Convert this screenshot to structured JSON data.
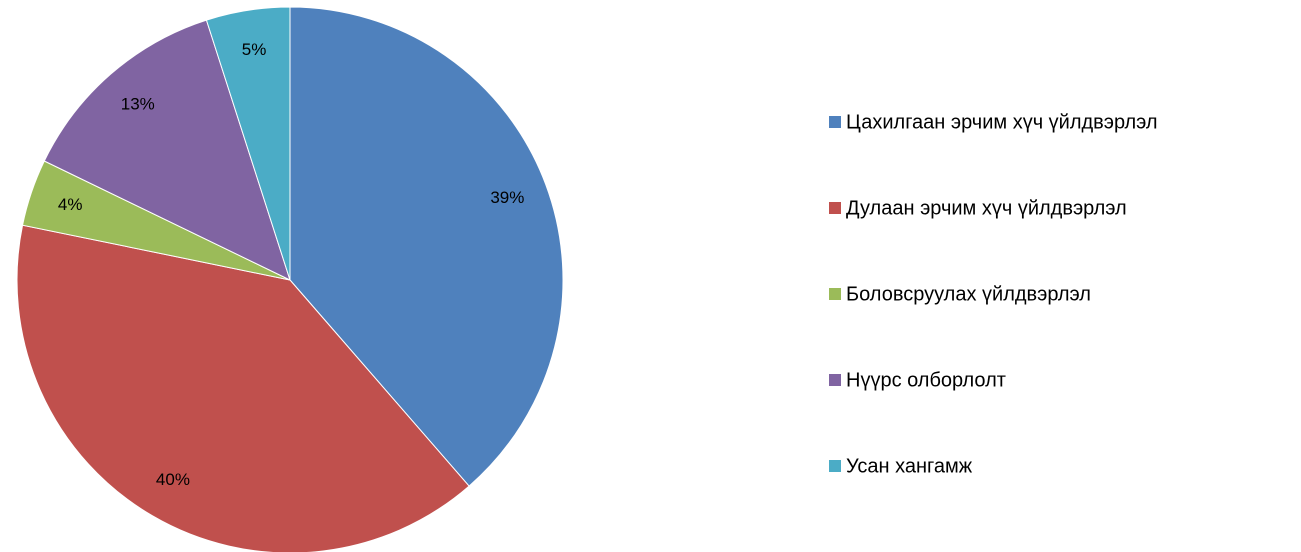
{
  "chart_data": {
    "type": "pie",
    "categories": [
      "Цахилгаан эрчим хүч үйлдвэрлэл",
      "Дулаан эрчим хүч үйлдвэрлэл",
      "Боловсруулах үйлдвэрлэл",
      "Нүүрс олборлолт",
      "Усан хангамж"
    ],
    "values": [
      39,
      40,
      4,
      13,
      5
    ],
    "value_labels": [
      "39%",
      "40%",
      "4%",
      "13%",
      "5%"
    ],
    "colors": [
      "#4f81bd",
      "#c0504d",
      "#9bbb59",
      "#8064a2",
      "#4bacc6"
    ],
    "legend": "right"
  }
}
